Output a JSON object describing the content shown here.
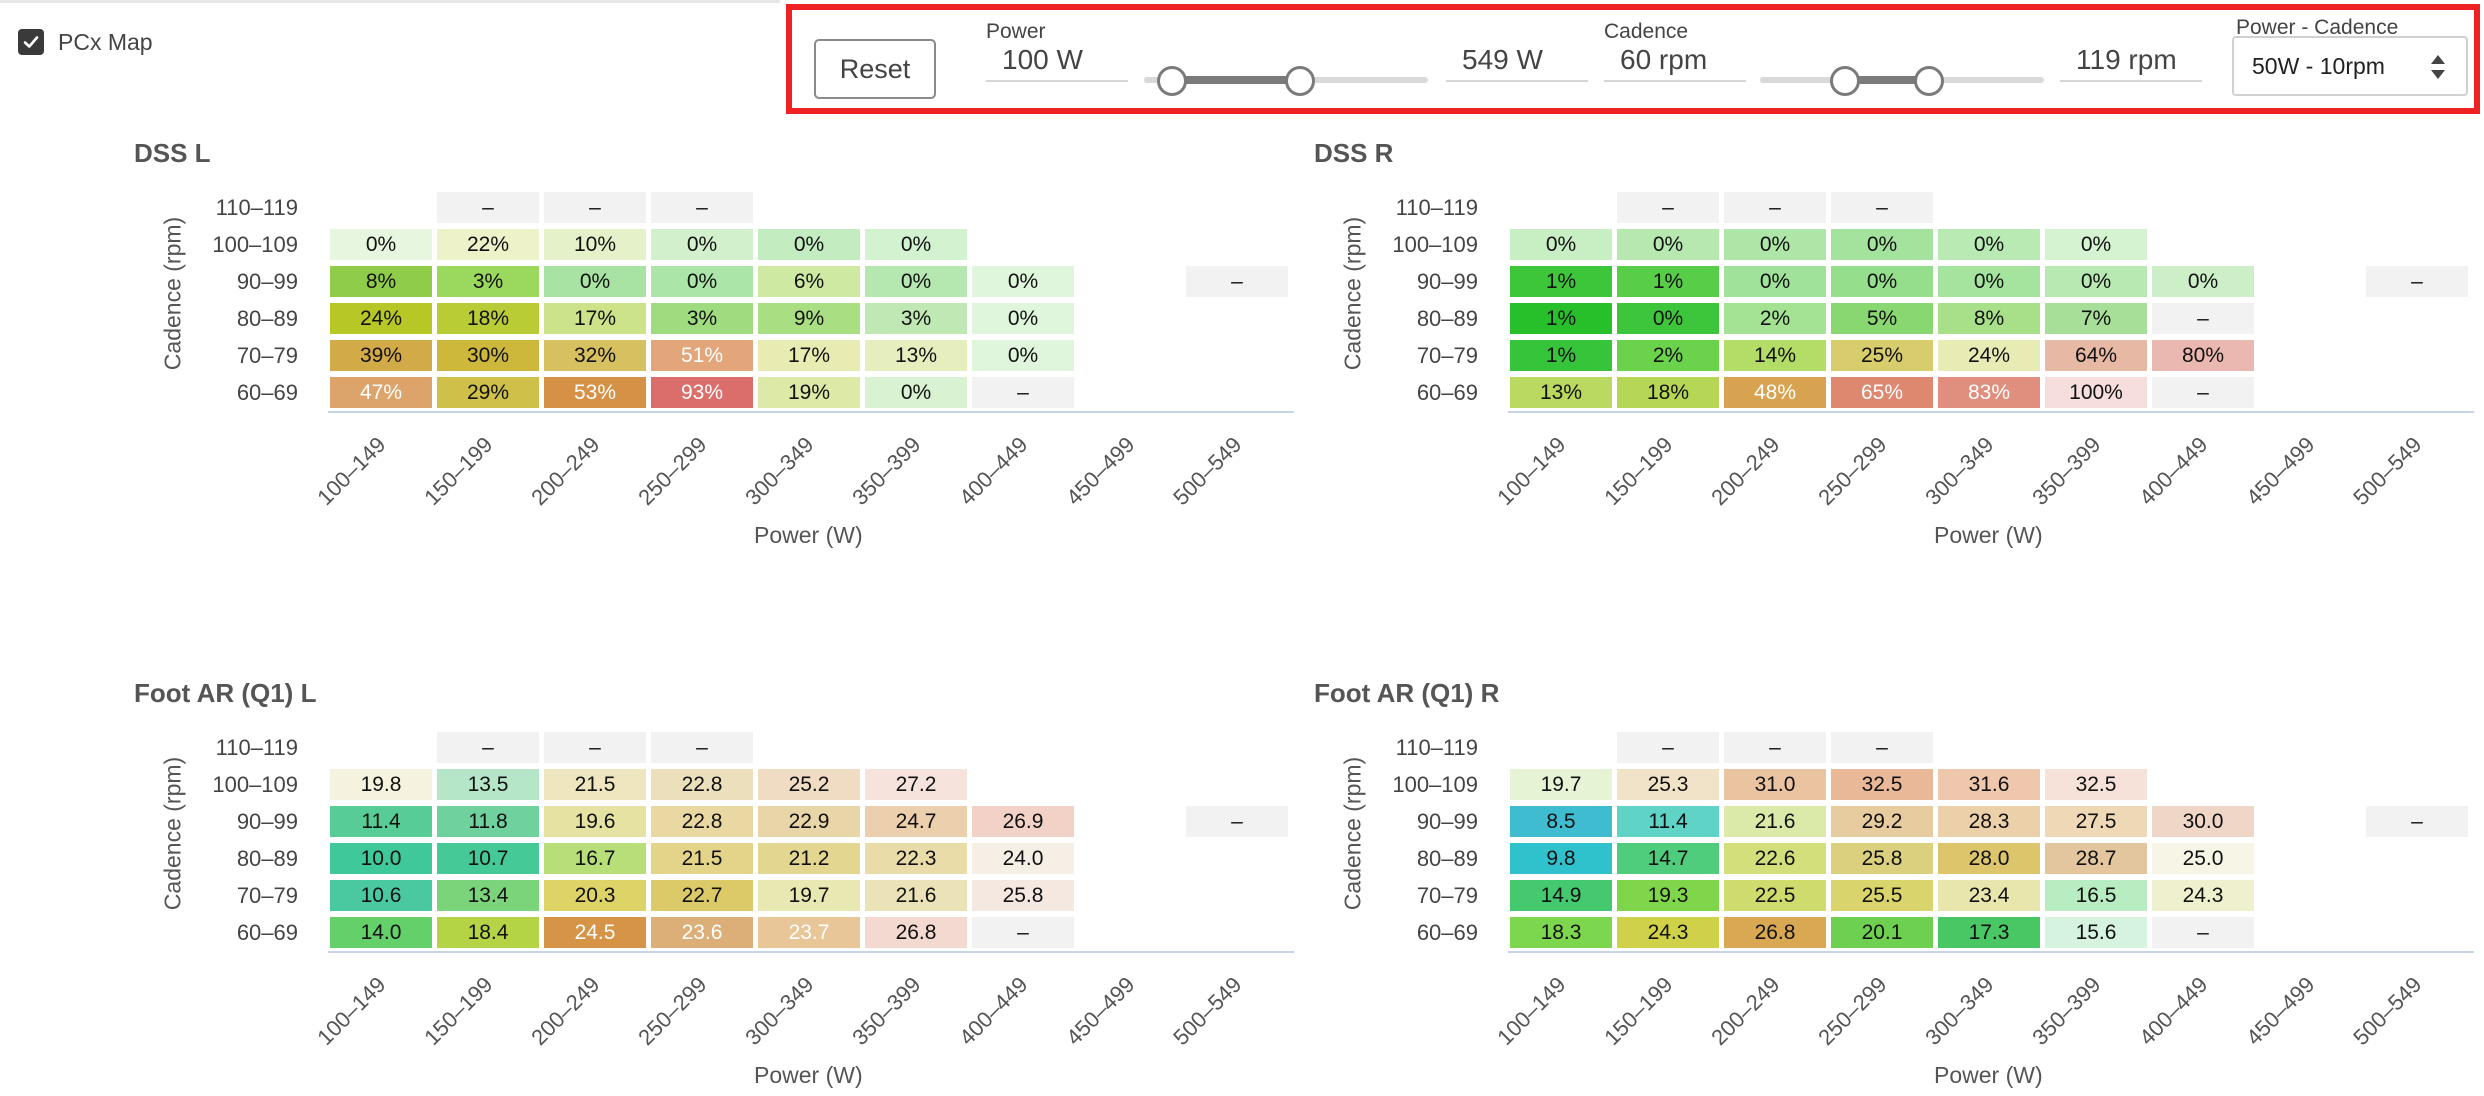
{
  "pcx_map": {
    "label": "PCx Map",
    "checked": true
  },
  "controls": {
    "reset_label": "Reset",
    "power": {
      "label": "Power",
      "min_value": "100 W",
      "max_value": "549 W",
      "low": 100,
      "high": 549,
      "range_min": 0,
      "range_max": 1000
    },
    "cadence": {
      "label": "Cadence",
      "min_value": "60 rpm",
      "max_value": "119 rpm",
      "low": 60,
      "high": 119,
      "range_min": 0,
      "range_max": 200
    },
    "binning": {
      "label": "Power - Cadence",
      "value": "50W - 10rpm"
    }
  },
  "axes": {
    "x_label": "Power (W)",
    "y_label": "Cadence (rpm)",
    "power_bins": [
      "100–149",
      "150–199",
      "200–249",
      "250–299",
      "300–349",
      "350–399",
      "400–449",
      "450–499",
      "500–549"
    ],
    "cadence_bins": [
      "110–119",
      "100–109",
      "90–99",
      "80–89",
      "70–79",
      "60–69"
    ]
  },
  "chart_data": [
    {
      "type": "heatmap",
      "title": "DSS L",
      "xlabel": "Power (W)",
      "ylabel": "Cadence (rpm)",
      "rows": [
        [
          "",
          "–",
          "–",
          "–",
          "",
          "",
          "",
          "",
          ""
        ],
        [
          "0%",
          "22%",
          "10%",
          "0%",
          "0%",
          "0%",
          "",
          "",
          ""
        ],
        [
          "8%",
          "3%",
          "0%",
          "0%",
          "6%",
          "0%",
          "0%",
          "",
          "–"
        ],
        [
          "24%",
          "18%",
          "17%",
          "3%",
          "9%",
          "3%",
          "0%",
          "",
          ""
        ],
        [
          "39%",
          "30%",
          "32%",
          "51%",
          "17%",
          "13%",
          "0%",
          "",
          ""
        ],
        [
          "47%",
          "29%",
          "53%",
          "93%",
          "19%",
          "0%",
          "–",
          "",
          ""
        ]
      ],
      "colors": [
        [
          "",
          "#f2f2f2",
          "#f2f2f2",
          "#f2f2f2",
          "",
          "",
          "",
          "",
          ""
        ],
        [
          "#e6f6df",
          "#eef2c8",
          "#e5f1c9",
          "#d3f0cc",
          "#c3ecc1",
          "#d2f2d0",
          "",
          "",
          ""
        ],
        [
          "#8fcc4a",
          "#9ad95e",
          "#a8e3a3",
          "#abe5a7",
          "#cde9a2",
          "#b5e8b1",
          "#dff6dc",
          "",
          "#f2f2f2"
        ],
        [
          "#b7c726",
          "#b9cb35",
          "#cde38a",
          "#9fdc80",
          "#a9df82",
          "#bfe8b4",
          "#dff6dc",
          "",
          ""
        ],
        [
          "#d3aa48",
          "#cdb83c",
          "#d6c060",
          "#e2a67a",
          "#e8ebb2",
          "#e6eebd",
          "#dff6dc",
          "",
          ""
        ],
        [
          "#dca46a",
          "#cfc04a",
          "#d59246",
          "#db6e6a",
          "#dde9a6",
          "#d8f2d2",
          "#f2f2f2",
          "",
          ""
        ]
      ],
      "light_text": [
        [
          0,
          0,
          0,
          0,
          0,
          0,
          0,
          0,
          0
        ],
        [
          0,
          0,
          0,
          0,
          0,
          0,
          0,
          0,
          0
        ],
        [
          0,
          0,
          0,
          0,
          0,
          0,
          0,
          0,
          0
        ],
        [
          0,
          0,
          0,
          0,
          0,
          0,
          0,
          0,
          0
        ],
        [
          0,
          0,
          0,
          1,
          0,
          0,
          0,
          0,
          0
        ],
        [
          1,
          0,
          1,
          1,
          0,
          0,
          0,
          0,
          0
        ]
      ]
    },
    {
      "type": "heatmap",
      "title": "DSS R",
      "xlabel": "Power (W)",
      "ylabel": "Cadence (rpm)",
      "rows": [
        [
          "",
          "–",
          "–",
          "–",
          "",
          "",
          "",
          "",
          ""
        ],
        [
          "0%",
          "0%",
          "0%",
          "0%",
          "0%",
          "0%",
          "",
          "",
          ""
        ],
        [
          "1%",
          "1%",
          "0%",
          "0%",
          "0%",
          "0%",
          "0%",
          "",
          "–"
        ],
        [
          "1%",
          "0%",
          "2%",
          "5%",
          "8%",
          "7%",
          "–",
          "",
          ""
        ],
        [
          "1%",
          "2%",
          "14%",
          "25%",
          "24%",
          "64%",
          "80%",
          "",
          ""
        ],
        [
          "13%",
          "18%",
          "48%",
          "65%",
          "83%",
          "100%",
          "–",
          "",
          ""
        ]
      ],
      "colors": [
        [
          "",
          "#f2f2f2",
          "#f2f2f2",
          "#f2f2f2",
          "",
          "",
          "",
          "",
          ""
        ],
        [
          "#c8efc4",
          "#b6e8b0",
          "#aee6a8",
          "#a4e39d",
          "#b9eab4",
          "#d5f2d1",
          "",
          "",
          ""
        ],
        [
          "#3ec63a",
          "#58cd48",
          "#a1e29a",
          "#95de8c",
          "#a5e49e",
          "#b8e9b2",
          "#ccefc8",
          "",
          "#f2f2f2"
        ],
        [
          "#27c02b",
          "#3dc63b",
          "#a4e294",
          "#89d771",
          "#a8e08a",
          "#a8df98",
          "#f2f2f2",
          "",
          ""
        ],
        [
          "#36c43a",
          "#6bd24c",
          "#b3dd66",
          "#d8cd6c",
          "#e8ecb4",
          "#e7b9a5",
          "#eab8b1",
          "",
          ""
        ],
        [
          "#b9d960",
          "#b6d755",
          "#d8a350",
          "#de8870",
          "#e08e7e",
          "#f6dedd",
          "#f2f2f2",
          "",
          ""
        ]
      ],
      "light_text": [
        [
          0,
          0,
          0,
          0,
          0,
          0,
          0,
          0,
          0
        ],
        [
          0,
          0,
          0,
          0,
          0,
          0,
          0,
          0,
          0
        ],
        [
          0,
          0,
          0,
          0,
          0,
          0,
          0,
          0,
          0
        ],
        [
          0,
          0,
          0,
          0,
          0,
          0,
          0,
          0,
          0
        ],
        [
          0,
          0,
          0,
          0,
          0,
          0,
          0,
          0,
          0
        ],
        [
          0,
          0,
          1,
          1,
          1,
          0,
          0,
          0,
          0
        ]
      ]
    },
    {
      "type": "heatmap",
      "title": "Foot AR (Q1) L",
      "xlabel": "Power (W)",
      "ylabel": "Cadence (rpm)",
      "rows": [
        [
          "",
          "–",
          "–",
          "–",
          "",
          "",
          "",
          "",
          ""
        ],
        [
          "19.8",
          "13.5",
          "21.5",
          "22.8",
          "25.2",
          "27.2",
          "",
          "",
          ""
        ],
        [
          "11.4",
          "11.8",
          "19.6",
          "22.8",
          "22.9",
          "24.7",
          "26.9",
          "",
          "–"
        ],
        [
          "10.0",
          "10.7",
          "16.7",
          "21.5",
          "21.2",
          "22.3",
          "24.0",
          "",
          ""
        ],
        [
          "10.6",
          "13.4",
          "20.3",
          "22.7",
          "19.7",
          "21.6",
          "25.8",
          "",
          ""
        ],
        [
          "14.0",
          "18.4",
          "24.5",
          "23.6",
          "23.7",
          "26.8",
          "–",
          "",
          ""
        ]
      ],
      "colors": [
        [
          "",
          "#f2f2f2",
          "#f2f2f2",
          "#f2f2f2",
          "",
          "",
          "",
          "",
          ""
        ],
        [
          "#f5f2df",
          "#b5e6c7",
          "#efe5bf",
          "#ecdfbb",
          "#f0dcc3",
          "#f6e3dc",
          "",
          "",
          ""
        ],
        [
          "#57cc96",
          "#6fd19d",
          "#e6e3a2",
          "#ead8a2",
          "#e9d6a8",
          "#eccfac",
          "#f2d2c7",
          "",
          "#f2f2f2"
        ],
        [
          "#3fc89a",
          "#45ca97",
          "#b7de78",
          "#e4d489",
          "#e2d690",
          "#e9dca8",
          "#f6efe6",
          "",
          ""
        ],
        [
          "#4ac89f",
          "#7bd47a",
          "#ddd367",
          "#dcc968",
          "#e8e8b3",
          "#ebe3b7",
          "#f4e8e0",
          "",
          ""
        ],
        [
          "#63d06a",
          "#b5d445",
          "#d69446",
          "#dcae78",
          "#e9c698",
          "#f3d9cf",
          "#f2f2f2",
          "",
          ""
        ]
      ],
      "light_text": [
        [
          0,
          0,
          0,
          0,
          0,
          0,
          0,
          0,
          0
        ],
        [
          0,
          0,
          0,
          0,
          0,
          0,
          0,
          0,
          0
        ],
        [
          0,
          0,
          0,
          0,
          0,
          0,
          0,
          0,
          0
        ],
        [
          0,
          0,
          0,
          0,
          0,
          0,
          0,
          0,
          0
        ],
        [
          0,
          0,
          0,
          0,
          0,
          0,
          0,
          0,
          0
        ],
        [
          0,
          0,
          1,
          1,
          1,
          0,
          0,
          0,
          0
        ]
      ]
    },
    {
      "type": "heatmap",
      "title": "Foot AR (Q1) R",
      "xlabel": "Power (W)",
      "ylabel": "Cadence (rpm)",
      "rows": [
        [
          "",
          "–",
          "–",
          "–",
          "",
          "",
          "",
          "",
          ""
        ],
        [
          "19.7",
          "25.3",
          "31.0",
          "32.5",
          "31.6",
          "32.5",
          "",
          "",
          ""
        ],
        [
          "8.5",
          "11.4",
          "21.6",
          "29.2",
          "28.3",
          "27.5",
          "30.0",
          "",
          "–"
        ],
        [
          "9.8",
          "14.7",
          "22.6",
          "25.8",
          "28.0",
          "28.7",
          "25.0",
          "",
          ""
        ],
        [
          "14.9",
          "19.3",
          "22.5",
          "25.5",
          "23.4",
          "16.5",
          "24.3",
          "",
          ""
        ],
        [
          "18.3",
          "24.3",
          "26.8",
          "20.1",
          "17.3",
          "15.6",
          "–",
          "",
          ""
        ]
      ],
      "colors": [
        [
          "",
          "#f2f2f2",
          "#f2f2f2",
          "#f2f2f2",
          "",
          "",
          "",
          "",
          ""
        ],
        [
          "#e6f3d4",
          "#f1e3c8",
          "#eac4a0",
          "#e9b896",
          "#eec7ac",
          "#f6e2d9",
          "",
          "",
          ""
        ],
        [
          "#3fbcd0",
          "#5fd3c6",
          "#dbeaa9",
          "#e6cc9f",
          "#ecd0aa",
          "#eed8b6",
          "#f0d6c6",
          "",
          "#f2f2f2"
        ],
        [
          "#2fc2cc",
          "#4fcc7c",
          "#d2df7b",
          "#dbd07d",
          "#dcc56b",
          "#e3c69e",
          "#f7f5e6",
          "",
          ""
        ],
        [
          "#45c96e",
          "#80d64b",
          "#cfdb6c",
          "#d9d46b",
          "#e8e6ad",
          "#b8ecc1",
          "#eff1ce",
          "",
          ""
        ],
        [
          "#7cd64e",
          "#cfd248",
          "#d9a852",
          "#6dd050",
          "#49c765",
          "#d6f3df",
          "#f2f2f2",
          "",
          ""
        ]
      ],
      "light_text": [
        [
          0,
          0,
          0,
          0,
          0,
          0,
          0,
          0,
          0
        ],
        [
          0,
          0,
          0,
          0,
          0,
          0,
          0,
          0,
          0
        ],
        [
          0,
          0,
          0,
          0,
          0,
          0,
          0,
          0,
          0
        ],
        [
          0,
          0,
          0,
          0,
          0,
          0,
          0,
          0,
          0
        ],
        [
          0,
          0,
          0,
          0,
          0,
          0,
          0,
          0,
          0
        ],
        [
          0,
          0,
          0,
          0,
          0,
          0,
          0,
          0,
          0
        ]
      ]
    }
  ]
}
